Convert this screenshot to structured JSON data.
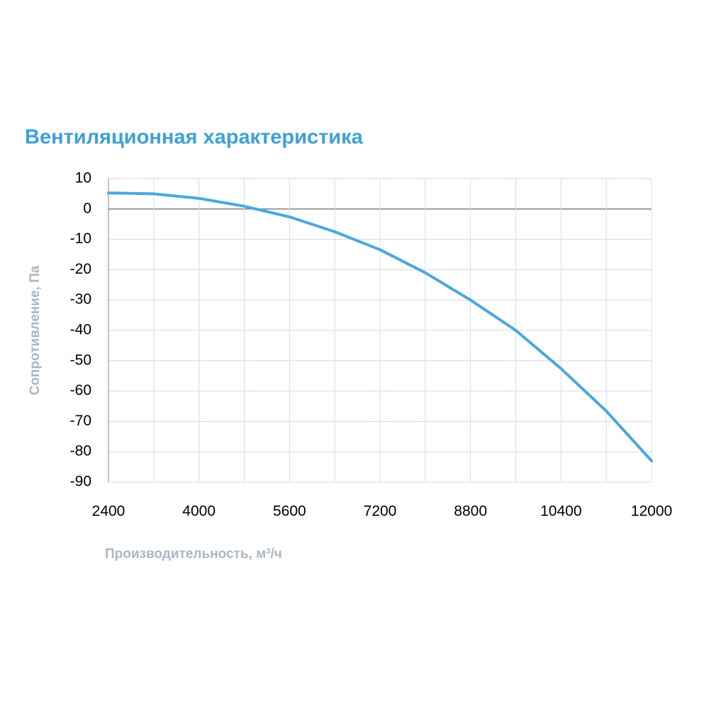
{
  "chart_data": {
    "type": "line",
    "title": "Вентиляционная характеристика",
    "y_label": "Сопротивление, Па",
    "x_label": "Производительность, м³/ч",
    "x": [
      2400,
      3200,
      4000,
      4800,
      5600,
      6400,
      7200,
      8000,
      8800,
      9600,
      10400,
      11200,
      12000
    ],
    "series": [
      {
        "color": "#4aa8dc",
        "values": [
          5.3,
          5,
          3.5,
          0.9,
          -2.6,
          -7.5,
          -13.4,
          -21,
          -30,
          -40,
          -52.6,
          -66.6,
          -83
        ]
      }
    ],
    "xlim": [
      2400,
      12000
    ],
    "xticks": [
      2400,
      4000,
      5600,
      7200,
      8800,
      10400,
      12000
    ],
    "xminor": [
      3200,
      4800,
      6400,
      8000,
      9600,
      11200
    ],
    "ylim": [
      -90,
      10
    ],
    "yticks": [
      10,
      0,
      -10,
      -20,
      -30,
      -40,
      -50,
      -60,
      -70,
      -80,
      -90
    ],
    "grid": true
  }
}
